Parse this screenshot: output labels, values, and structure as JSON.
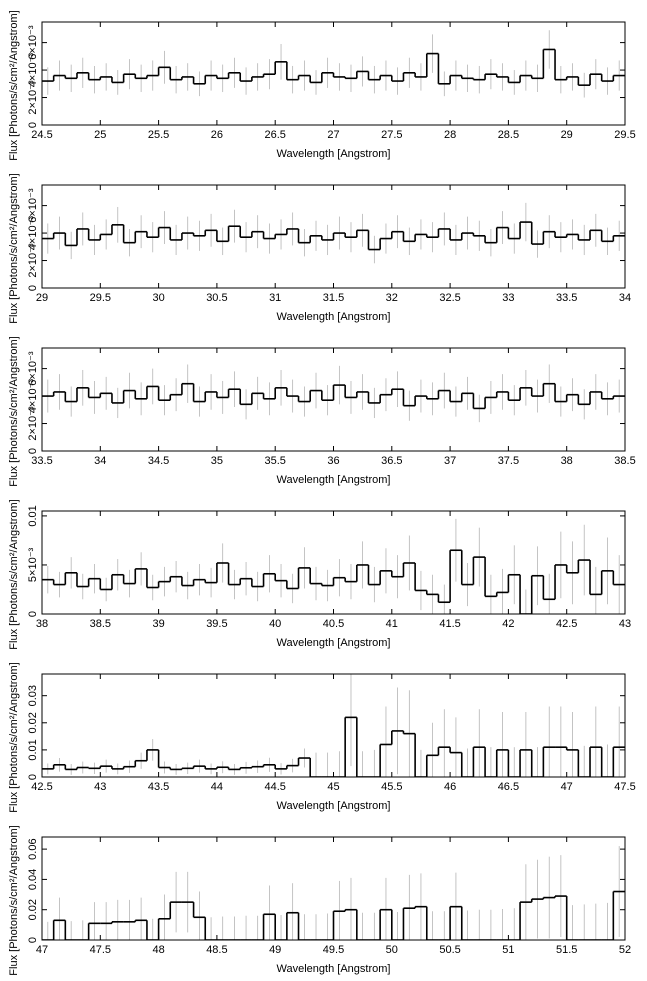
{
  "chart_data": [
    {
      "type": "step",
      "x_label": "Wavelength [Angstrom]",
      "y_label": "Flux [Photons/s/cm²/Angstrom]",
      "xlim": [
        24.5,
        29.5
      ],
      "xticks": [
        24.5,
        25,
        25.5,
        26,
        26.5,
        27,
        27.5,
        28,
        28.5,
        29,
        29.5
      ],
      "ylim": [
        0,
        0.0075
      ],
      "yticks": [
        0,
        {
          "value": 0.002,
          "label": "2×10⁻³"
        },
        {
          "value": 0.004,
          "label": "4×10⁻³"
        },
        {
          "value": 0.006,
          "label": "6×10⁻³"
        }
      ],
      "x": [
        24.55,
        24.65,
        24.75,
        24.85,
        24.95,
        25.05,
        25.15,
        25.25,
        25.35,
        25.45,
        25.55,
        25.65,
        25.75,
        25.85,
        25.95,
        26.05,
        26.15,
        26.25,
        26.35,
        26.45,
        26.55,
        26.65,
        26.75,
        26.85,
        26.95,
        27.05,
        27.15,
        27.25,
        27.35,
        27.45,
        27.55,
        27.65,
        27.75,
        27.85,
        27.95,
        28.05,
        28.15,
        28.25,
        28.35,
        28.45,
        28.55,
        28.65,
        28.75,
        28.85,
        28.95,
        29.05,
        29.15,
        29.25,
        29.35,
        29.45
      ],
      "values": [
        0.0032,
        0.0036,
        0.0034,
        0.0038,
        0.0033,
        0.0035,
        0.0031,
        0.0037,
        0.0034,
        0.0036,
        0.0042,
        0.0033,
        0.0035,
        0.003,
        0.0036,
        0.0034,
        0.0038,
        0.0032,
        0.0035,
        0.0037,
        0.0046,
        0.0033,
        0.0036,
        0.0031,
        0.0038,
        0.0035,
        0.0034,
        0.0039,
        0.0033,
        0.0036,
        0.0032,
        0.0038,
        0.0035,
        0.0052,
        0.003,
        0.0036,
        0.0034,
        0.0033,
        0.0037,
        0.0035,
        0.0031,
        0.0036,
        0.0034,
        0.0055,
        0.0033,
        0.0035,
        0.0029,
        0.0037,
        0.0032,
        0.0036
      ],
      "errors": [
        0.001,
        0.0011,
        0.001,
        0.0011,
        0.001,
        0.001,
        0.0009,
        0.0011,
        0.001,
        0.0011,
        0.0012,
        0.001,
        0.001,
        0.0009,
        0.0011,
        0.001,
        0.0011,
        0.001,
        0.001,
        0.0011,
        0.0013,
        0.001,
        0.0011,
        0.0009,
        0.0011,
        0.001,
        0.001,
        0.0011,
        0.001,
        0.0011,
        0.001,
        0.0011,
        0.001,
        0.0014,
        0.0009,
        0.0011,
        0.001,
        0.001,
        0.0011,
        0.001,
        0.0009,
        0.0011,
        0.001,
        0.0014,
        0.001,
        0.001,
        0.0009,
        0.0011,
        0.001,
        0.0011
      ]
    },
    {
      "type": "step",
      "x_label": "Wavelength [Angstrom]",
      "y_label": "Flux [Photons/s/cm²/Angstrom]",
      "xlim": [
        29,
        34
      ],
      "xticks": [
        29,
        29.5,
        30,
        30.5,
        31,
        31.5,
        32,
        32.5,
        33,
        33.5,
        34
      ],
      "ylim": [
        0,
        0.0075
      ],
      "yticks": [
        0,
        {
          "value": 0.002,
          "label": "2×10⁻³"
        },
        {
          "value": 0.004,
          "label": "4×10⁻³"
        },
        {
          "value": 0.006,
          "label": "6×10⁻³"
        }
      ],
      "x": [
        29.05,
        29.15,
        29.25,
        29.35,
        29.45,
        29.55,
        29.65,
        29.75,
        29.85,
        29.95,
        30.05,
        30.15,
        30.25,
        30.35,
        30.45,
        30.55,
        30.65,
        30.75,
        30.85,
        30.95,
        31.05,
        31.15,
        31.25,
        31.35,
        31.45,
        31.55,
        31.65,
        31.75,
        31.85,
        31.95,
        32.05,
        32.15,
        32.25,
        32.35,
        32.45,
        32.55,
        32.65,
        32.75,
        32.85,
        32.95,
        33.05,
        33.15,
        33.25,
        33.35,
        33.45,
        33.55,
        33.65,
        33.75,
        33.85,
        33.95
      ],
      "values": [
        0.0036,
        0.004,
        0.0031,
        0.0043,
        0.0035,
        0.0039,
        0.0046,
        0.0033,
        0.0041,
        0.0037,
        0.0044,
        0.0035,
        0.004,
        0.0038,
        0.0042,
        0.0034,
        0.0045,
        0.0037,
        0.0041,
        0.0036,
        0.0039,
        0.0043,
        0.0033,
        0.0038,
        0.0035,
        0.004,
        0.0037,
        0.0042,
        0.0028,
        0.0036,
        0.0041,
        0.0034,
        0.0039,
        0.0037,
        0.0043,
        0.0035,
        0.004,
        0.0038,
        0.0033,
        0.0044,
        0.0036,
        0.0048,
        0.0032,
        0.0041,
        0.0037,
        0.0039,
        0.0035,
        0.0042,
        0.0034,
        0.0038
      ],
      "errors": [
        0.0011,
        0.0012,
        0.001,
        0.0012,
        0.0011,
        0.0011,
        0.0013,
        0.001,
        0.0012,
        0.0011,
        0.0012,
        0.0011,
        0.0012,
        0.0011,
        0.0012,
        0.001,
        0.0012,
        0.0011,
        0.0012,
        0.0011,
        0.0011,
        0.0012,
        0.001,
        0.0011,
        0.0011,
        0.0012,
        0.0011,
        0.0012,
        0.001,
        0.0011,
        0.0012,
        0.001,
        0.0011,
        0.0011,
        0.0012,
        0.0011,
        0.0012,
        0.0011,
        0.001,
        0.0012,
        0.0011,
        0.0014,
        0.001,
        0.0012,
        0.0011,
        0.0011,
        0.0011,
        0.0012,
        0.001,
        0.0011
      ]
    },
    {
      "type": "step",
      "x_label": "Wavelength [Angstrom]",
      "y_label": "Flux [Photons/s/cm²/Angstrom]",
      "xlim": [
        33.5,
        38.5
      ],
      "xticks": [
        33.5,
        34,
        34.5,
        35,
        35.5,
        36,
        36.5,
        37,
        37.5,
        38,
        38.5
      ],
      "ylim": [
        0,
        0.0075
      ],
      "yticks": [
        0,
        {
          "value": 0.002,
          "label": "2×10⁻³"
        },
        {
          "value": 0.004,
          "label": "4×10⁻³"
        },
        {
          "value": 0.006,
          "label": "6×10⁻³"
        }
      ],
      "x": [
        33.55,
        33.65,
        33.75,
        33.85,
        33.95,
        34.05,
        34.15,
        34.25,
        34.35,
        34.45,
        34.55,
        34.65,
        34.75,
        34.85,
        34.95,
        35.05,
        35.15,
        35.25,
        35.35,
        35.45,
        35.55,
        35.65,
        35.75,
        35.85,
        35.95,
        36.05,
        36.15,
        36.25,
        36.35,
        36.45,
        36.55,
        36.65,
        36.75,
        36.85,
        36.95,
        37.05,
        37.15,
        37.25,
        37.35,
        37.45,
        37.55,
        37.65,
        37.75,
        37.85,
        37.95,
        38.05,
        38.15,
        38.25,
        38.35,
        38.45
      ],
      "values": [
        0.004,
        0.0043,
        0.0036,
        0.0046,
        0.0039,
        0.0042,
        0.0035,
        0.0044,
        0.0038,
        0.0047,
        0.0037,
        0.0041,
        0.0049,
        0.0036,
        0.0043,
        0.0039,
        0.0045,
        0.0034,
        0.0042,
        0.0038,
        0.0046,
        0.004,
        0.0036,
        0.0044,
        0.0037,
        0.0048,
        0.0039,
        0.0043,
        0.0035,
        0.0041,
        0.0045,
        0.0033,
        0.004,
        0.0038,
        0.0044,
        0.0036,
        0.0042,
        0.0031,
        0.0039,
        0.0043,
        0.0037,
        0.0046,
        0.004,
        0.0049,
        0.0036,
        0.0041,
        0.0034,
        0.0043,
        0.0038,
        0.004
      ],
      "errors": [
        0.0012,
        0.0013,
        0.0011,
        0.0013,
        0.0012,
        0.0012,
        0.0011,
        0.0013,
        0.0012,
        0.0013,
        0.0011,
        0.0012,
        0.0014,
        0.0011,
        0.0013,
        0.0012,
        0.0013,
        0.0011,
        0.0012,
        0.0012,
        0.0013,
        0.0012,
        0.0011,
        0.0013,
        0.0011,
        0.0014,
        0.0012,
        0.0013,
        0.0011,
        0.0012,
        0.0013,
        0.0011,
        0.0012,
        0.0012,
        0.0013,
        0.0011,
        0.0012,
        0.001,
        0.0012,
        0.0013,
        0.0011,
        0.0013,
        0.0012,
        0.0014,
        0.0011,
        0.0012,
        0.0011,
        0.0013,
        0.0012,
        0.0012
      ]
    },
    {
      "type": "step",
      "x_label": "Wavelength [Angstrom]",
      "y_label": "Flux [Photons/s/cm²/Angstrom]",
      "xlim": [
        38,
        43
      ],
      "xticks": [
        38,
        38.5,
        39,
        39.5,
        40,
        40.5,
        41,
        41.5,
        42,
        42.5,
        43
      ],
      "ylim": [
        0,
        0.0105
      ],
      "yticks": [
        0,
        {
          "value": 0.005,
          "label": "5×10⁻³"
        },
        0.01
      ],
      "x": [
        38.05,
        38.15,
        38.25,
        38.35,
        38.45,
        38.55,
        38.65,
        38.75,
        38.85,
        38.95,
        39.05,
        39.15,
        39.25,
        39.35,
        39.45,
        39.55,
        39.65,
        39.75,
        39.85,
        39.95,
        40.05,
        40.15,
        40.25,
        40.35,
        40.45,
        40.55,
        40.65,
        40.75,
        40.85,
        40.95,
        41.05,
        41.15,
        41.25,
        41.35,
        41.45,
        41.55,
        41.65,
        41.75,
        41.85,
        41.95,
        42.05,
        42.15,
        42.25,
        42.35,
        42.45,
        42.55,
        42.65,
        42.75,
        42.85,
        42.95
      ],
      "values": [
        0.0035,
        0.003,
        0.0042,
        0.0028,
        0.0036,
        0.0025,
        0.004,
        0.0031,
        0.0046,
        0.0027,
        0.0033,
        0.0038,
        0.0029,
        0.0035,
        0.0032,
        0.0052,
        0.003,
        0.0036,
        0.0028,
        0.0041,
        0.0034,
        0.0026,
        0.0047,
        0.0031,
        0.0029,
        0.0037,
        0.0033,
        0.005,
        0.003,
        0.0044,
        0.0038,
        0.0052,
        0.0024,
        0.002,
        0.0012,
        0.0065,
        0.003,
        0.0058,
        0.0018,
        0.0022,
        0.004,
        0.0,
        0.0039,
        0.0015,
        0.005,
        0.0042,
        0.0055,
        0.002,
        0.0044,
        0.003
      ],
      "errors": [
        0.0014,
        0.0013,
        0.0016,
        0.0013,
        0.0015,
        0.0012,
        0.0016,
        0.0014,
        0.0017,
        0.0013,
        0.0015,
        0.0016,
        0.0014,
        0.0016,
        0.0015,
        0.002,
        0.0015,
        0.0017,
        0.0015,
        0.0019,
        0.0017,
        0.0015,
        0.0021,
        0.0017,
        0.0016,
        0.0019,
        0.0018,
        0.0024,
        0.0018,
        0.0023,
        0.0022,
        0.0028,
        0.002,
        0.002,
        0.0018,
        0.0032,
        0.0022,
        0.003,
        0.0022,
        0.0024,
        0.003,
        0.0025,
        0.003,
        0.0026,
        0.0034,
        0.0032,
        0.0036,
        0.0028,
        0.0034,
        0.003
      ]
    },
    {
      "type": "step",
      "x_label": "Wavelength [Angstrom]",
      "y_label": "Flux [Photons/s/cm²/Angstrom]",
      "xlim": [
        42.5,
        47.5
      ],
      "xticks": [
        42.5,
        43,
        43.5,
        44,
        44.5,
        45,
        45.5,
        46,
        46.5,
        47,
        47.5
      ],
      "ylim": [
        0,
        0.038
      ],
      "yticks": [
        0,
        0.01,
        0.02,
        0.03
      ],
      "x": [
        42.55,
        42.65,
        42.75,
        42.85,
        42.95,
        43.05,
        43.15,
        43.25,
        43.35,
        43.45,
        43.55,
        43.65,
        43.75,
        43.85,
        43.95,
        44.05,
        44.15,
        44.25,
        44.35,
        44.45,
        44.55,
        44.65,
        44.75,
        44.85,
        44.95,
        45.05,
        45.15,
        45.25,
        45.35,
        45.45,
        45.55,
        45.65,
        45.75,
        45.85,
        45.95,
        46.05,
        46.15,
        46.25,
        46.35,
        46.45,
        46.55,
        46.65,
        46.75,
        46.85,
        46.95,
        47.05,
        47.15,
        47.25,
        47.35,
        47.45
      ],
      "values": [
        0.003,
        0.0045,
        0.0028,
        0.0035,
        0.0032,
        0.004,
        0.003,
        0.0038,
        0.006,
        0.01,
        0.0035,
        0.0028,
        0.0032,
        0.004,
        0.003,
        0.0036,
        0.0028,
        0.0034,
        0.0038,
        0.0045,
        0.003,
        0.0042,
        0.007,
        0.0,
        0.0,
        0.0,
        0.022,
        0.0,
        0.0,
        0.012,
        0.017,
        0.016,
        0.0,
        0.008,
        0.011,
        0.009,
        0.0,
        0.011,
        0.0,
        0.01,
        0.0,
        0.01,
        0.0,
        0.011,
        0.011,
        0.01,
        0.0,
        0.011,
        0.0,
        0.011
      ],
      "errors": [
        0.002,
        0.0025,
        0.002,
        0.0022,
        0.0021,
        0.0024,
        0.002,
        0.0023,
        0.003,
        0.004,
        0.0022,
        0.002,
        0.0021,
        0.0024,
        0.002,
        0.0022,
        0.002,
        0.0022,
        0.0023,
        0.0026,
        0.0021,
        0.0025,
        0.0035,
        0.009,
        0.009,
        0.0095,
        0.018,
        0.0095,
        0.01,
        0.014,
        0.016,
        0.016,
        0.01,
        0.012,
        0.014,
        0.013,
        0.0105,
        0.014,
        0.011,
        0.014,
        0.011,
        0.014,
        0.011,
        0.015,
        0.015,
        0.014,
        0.0115,
        0.015,
        0.012,
        0.015
      ]
    },
    {
      "type": "step",
      "x_label": "Wavelength [Angstrom]",
      "y_label": "Flux [Photons/s/cm²/Angstrom]",
      "xlim": [
        47,
        52
      ],
      "xticks": [
        47,
        47.5,
        48,
        48.5,
        49,
        49.5,
        50,
        50.5,
        51,
        51.5,
        52
      ],
      "ylim": [
        0,
        0.068
      ],
      "yticks": [
        0,
        0.02,
        0.04,
        0.06
      ],
      "x": [
        47.05,
        47.15,
        47.25,
        47.35,
        47.45,
        47.55,
        47.65,
        47.75,
        47.85,
        47.95,
        48.05,
        48.15,
        48.25,
        48.35,
        48.45,
        48.55,
        48.65,
        48.75,
        48.85,
        48.95,
        49.05,
        49.15,
        49.25,
        49.35,
        49.45,
        49.55,
        49.65,
        49.75,
        49.85,
        49.95,
        50.05,
        50.15,
        50.25,
        50.35,
        50.45,
        50.55,
        50.65,
        50.75,
        50.85,
        50.95,
        51.05,
        51.15,
        51.25,
        51.35,
        51.45,
        51.55,
        51.65,
        51.75,
        51.85,
        51.95
      ],
      "values": [
        0.0,
        0.013,
        0.0,
        0.0,
        0.011,
        0.011,
        0.012,
        0.012,
        0.013,
        0.0,
        0.014,
        0.025,
        0.025,
        0.015,
        0.0,
        0.0,
        0.0,
        0.0,
        0.0,
        0.017,
        0.0,
        0.018,
        0.0,
        0.0,
        0.0,
        0.019,
        0.02,
        0.0,
        0.0,
        0.02,
        0.0,
        0.021,
        0.022,
        0.0,
        0.0,
        0.022,
        0.0,
        0.0,
        0.0,
        0.0,
        0.0,
        0.025,
        0.027,
        0.028,
        0.029,
        0.0,
        0.0,
        0.0,
        0.0,
        0.032
      ],
      "errors": [
        0.012,
        0.015,
        0.0125,
        0.013,
        0.014,
        0.014,
        0.0145,
        0.0145,
        0.015,
        0.014,
        0.016,
        0.02,
        0.02,
        0.017,
        0.015,
        0.0155,
        0.0155,
        0.016,
        0.016,
        0.019,
        0.0165,
        0.0195,
        0.017,
        0.017,
        0.0175,
        0.02,
        0.021,
        0.018,
        0.018,
        0.021,
        0.0185,
        0.022,
        0.022,
        0.019,
        0.019,
        0.0225,
        0.0195,
        0.02,
        0.02,
        0.0205,
        0.021,
        0.025,
        0.026,
        0.027,
        0.027,
        0.023,
        0.0235,
        0.024,
        0.0245,
        0.03
      ]
    }
  ]
}
